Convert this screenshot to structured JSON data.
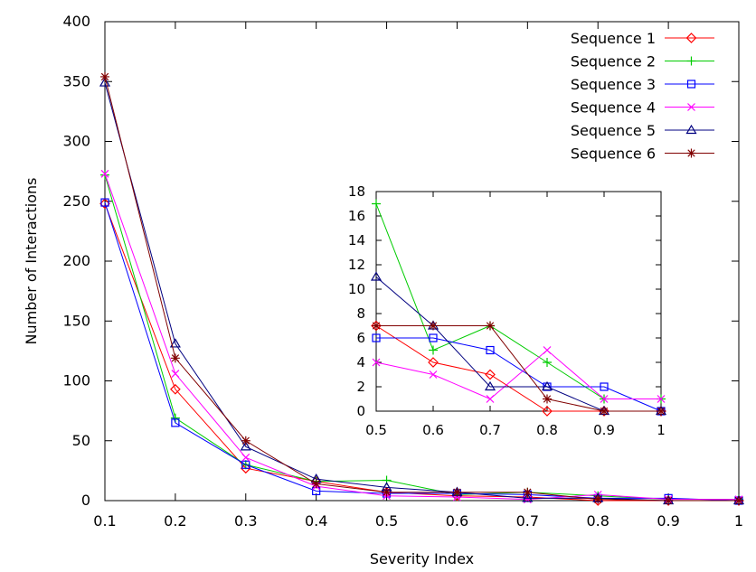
{
  "chart_data": [
    {
      "type": "line",
      "xlabel": "Severity Index",
      "ylabel": "Number of Interactions",
      "xlim": [
        0.1,
        1.0
      ],
      "ylim": [
        0,
        400
      ],
      "x_ticks": [
        "0.1",
        "0.2",
        "0.3",
        "0.4",
        "0.5",
        "0.6",
        "0.7",
        "0.8",
        "0.9",
        "1"
      ],
      "y_ticks": [
        "0",
        "50",
        "100",
        "150",
        "200",
        "250",
        "300",
        "350",
        "400"
      ],
      "grid": false,
      "legend_position": "top-right",
      "x": [
        0.1,
        0.2,
        0.3,
        0.4,
        0.5,
        0.6,
        0.7,
        0.8,
        0.9,
        1.0
      ],
      "series": [
        {
          "name": "Sequence 1",
          "color": "#ff0000",
          "marker": "diamond",
          "values": [
            248,
            93,
            27,
            16,
            7,
            4,
            3,
            0,
            0,
            0
          ]
        },
        {
          "name": "Sequence 2",
          "color": "#00cc00",
          "marker": "plus",
          "values": [
            272,
            69,
            30,
            16,
            17,
            5,
            7,
            4,
            1,
            1
          ]
        },
        {
          "name": "Sequence 3",
          "color": "#0000ff",
          "marker": "square",
          "values": [
            249,
            65,
            30,
            8,
            6,
            6,
            5,
            2,
            2,
            0
          ]
        },
        {
          "name": "Sequence 4",
          "color": "#ff00ff",
          "marker": "cross",
          "values": [
            273,
            106,
            36,
            12,
            4,
            3,
            1,
            5,
            1,
            1
          ]
        },
        {
          "name": "Sequence 5",
          "color": "#000080",
          "marker": "triangle",
          "values": [
            349,
            131,
            45,
            18,
            11,
            7,
            2,
            2,
            0,
            0
          ]
        },
        {
          "name": "Sequence 6",
          "color": "#800000",
          "marker": "star",
          "values": [
            354,
            119,
            50,
            14,
            7,
            7,
            7,
            1,
            0,
            0
          ]
        }
      ]
    },
    {
      "type": "line",
      "xlim": [
        0.5,
        1.0
      ],
      "ylim": [
        0,
        18
      ],
      "x_ticks": [
        "0.5",
        "0.6",
        "0.7",
        "0.8",
        "0.9",
        "1"
      ],
      "y_ticks": [
        "0",
        "2",
        "4",
        "6",
        "8",
        "10",
        "12",
        "14",
        "16",
        "18"
      ],
      "x": [
        0.5,
        0.6,
        0.7,
        0.8,
        0.9,
        1.0
      ],
      "series": [
        {
          "values": [
            7,
            4,
            3,
            0,
            0,
            0
          ]
        },
        {
          "values": [
            17,
            5,
            7,
            4,
            1,
            1
          ]
        },
        {
          "values": [
            6,
            6,
            5,
            2,
            2,
            0
          ]
        },
        {
          "values": [
            4,
            3,
            1,
            5,
            1,
            1
          ]
        },
        {
          "values": [
            11,
            7,
            2,
            2,
            0,
            0
          ]
        },
        {
          "values": [
            7,
            7,
            7,
            1,
            0,
            0
          ]
        }
      ]
    }
  ]
}
